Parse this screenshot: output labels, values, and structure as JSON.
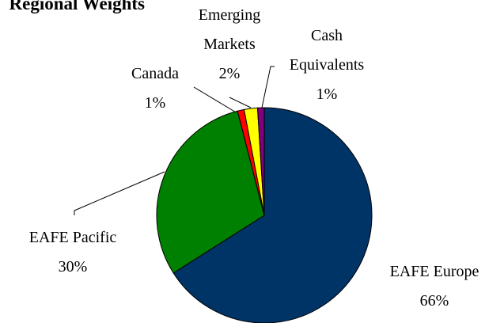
{
  "chart_data": {
    "type": "pie",
    "title": "Regional Weights",
    "categories": [
      "EAFE Europe",
      "EAFE Pacific",
      "Canada",
      "Emerging Markets",
      "Cash Equivalents"
    ],
    "values": [
      66,
      30,
      1,
      2,
      1
    ],
    "value_labels": [
      "66%",
      "30%",
      "1%",
      "2%",
      "1%"
    ],
    "colors": [
      "#003366",
      "#008000",
      "#ff0000",
      "#ffff00",
      "#800080"
    ]
  }
}
